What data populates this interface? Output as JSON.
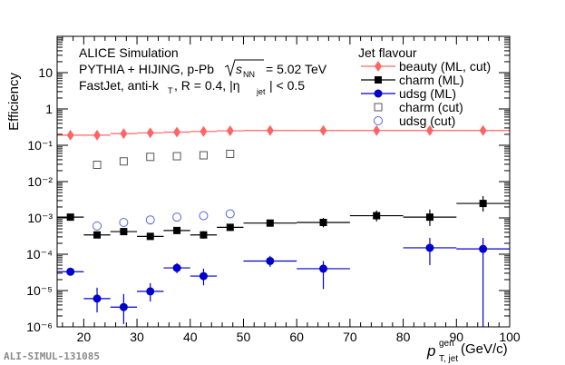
{
  "chart_data": {
    "type": "scatter",
    "title": "",
    "xlabel_main": "p",
    "xlabel_sup": "gen",
    "xlabel_sub": "T, jet",
    "xlabel_unit": "(GeV/c)",
    "ylabel": "Efficiency",
    "xlim": [
      15,
      100
    ],
    "ylim_log10": [
      -6,
      2
    ],
    "x_ticks": [
      20,
      30,
      40,
      50,
      60,
      70,
      80,
      90,
      100
    ],
    "y_tick_exponents": [
      -6,
      -5,
      -4,
      -3,
      -2,
      -1,
      0,
      1
    ],
    "y_tick_labels": [
      "10⁻⁶",
      "10⁻⁵",
      "10⁻⁴",
      "10⁻³",
      "10⁻²",
      "10⁻¹",
      "1",
      "10"
    ],
    "annotations": {
      "line1": "ALICE Simulation",
      "line2_prefix": "PYTHIA + HIJING, p-Pb",
      "line2_sqrt_sub": "NN",
      "line2_suffix": "= 5.02 TeV",
      "line3_prefix": "FastJet, anti-k",
      "line3_k_sub": "T",
      "line3_mid": ", R = 0.4, |η",
      "line3_eta_sub": "jet",
      "line3_suffix": "| < 0.5"
    },
    "legend": {
      "title": "Jet flavour",
      "position": "top-right",
      "entries": [
        "beauty (ML, cut)",
        "charm (ML)",
        "udsg (ML)",
        "charm (cut)",
        "udsg (cut)"
      ]
    },
    "footer_label": "ALI-SIMUL-131085",
    "series": [
      {
        "name": "beauty (ML, cut)",
        "marker": "diamond",
        "color": "#ff6464",
        "points": [
          {
            "x": 17.5,
            "x_lo": 15,
            "x_hi": 20,
            "y": 0.19,
            "y_lo": 0.175,
            "y_hi": 0.205
          },
          {
            "x": 22.5,
            "x_lo": 20,
            "x_hi": 25,
            "y": 0.19,
            "y_lo": 0.175,
            "y_hi": 0.205
          },
          {
            "x": 27.5,
            "x_lo": 25,
            "x_hi": 30,
            "y": 0.21,
            "y_lo": 0.195,
            "y_hi": 0.225
          },
          {
            "x": 32.5,
            "x_lo": 30,
            "x_hi": 35,
            "y": 0.22,
            "y_lo": 0.205,
            "y_hi": 0.235
          },
          {
            "x": 37.5,
            "x_lo": 35,
            "x_hi": 40,
            "y": 0.23,
            "y_lo": 0.215,
            "y_hi": 0.245
          },
          {
            "x": 42.5,
            "x_lo": 40,
            "x_hi": 45,
            "y": 0.24,
            "y_lo": 0.225,
            "y_hi": 0.255
          },
          {
            "x": 47.5,
            "x_lo": 45,
            "x_hi": 50,
            "y": 0.25,
            "y_lo": 0.235,
            "y_hi": 0.265
          },
          {
            "x": 55,
            "x_lo": 50,
            "x_hi": 60,
            "y": 0.255,
            "y_lo": 0.24,
            "y_hi": 0.27
          },
          {
            "x": 65,
            "x_lo": 60,
            "x_hi": 70,
            "y": 0.255,
            "y_lo": 0.24,
            "y_hi": 0.27
          },
          {
            "x": 75,
            "x_lo": 70,
            "x_hi": 80,
            "y": 0.255,
            "y_lo": 0.24,
            "y_hi": 0.27
          },
          {
            "x": 85,
            "x_lo": 80,
            "x_hi": 90,
            "y": 0.255,
            "y_lo": 0.24,
            "y_hi": 0.27
          },
          {
            "x": 95,
            "x_lo": 90,
            "x_hi": 100,
            "y": 0.255,
            "y_lo": 0.24,
            "y_hi": 0.27
          }
        ]
      },
      {
        "name": "charm (ML)",
        "marker": "square",
        "color": "#000000",
        "points": [
          {
            "x": 17.5,
            "x_lo": 15,
            "x_hi": 20,
            "y": 0.00105,
            "y_lo": 0.00095,
            "y_hi": 0.00115
          },
          {
            "x": 22.5,
            "x_lo": 20,
            "x_hi": 25,
            "y": 0.00034,
            "y_lo": 0.00029,
            "y_hi": 0.00039
          },
          {
            "x": 27.5,
            "x_lo": 25,
            "x_hi": 30,
            "y": 0.00042,
            "y_lo": 0.00036,
            "y_hi": 0.00048
          },
          {
            "x": 32.5,
            "x_lo": 30,
            "x_hi": 35,
            "y": 0.00031,
            "y_lo": 0.00026,
            "y_hi": 0.00036
          },
          {
            "x": 37.5,
            "x_lo": 35,
            "x_hi": 40,
            "y": 0.00045,
            "y_lo": 0.00038,
            "y_hi": 0.00053
          },
          {
            "x": 42.5,
            "x_lo": 40,
            "x_hi": 45,
            "y": 0.00034,
            "y_lo": 0.00027,
            "y_hi": 0.00043
          },
          {
            "x": 47.5,
            "x_lo": 45,
            "x_hi": 50,
            "y": 0.00055,
            "y_lo": 0.00045,
            "y_hi": 0.00068
          },
          {
            "x": 55,
            "x_lo": 50,
            "x_hi": 60,
            "y": 0.00072,
            "y_lo": 0.0006,
            "y_hi": 0.00086
          },
          {
            "x": 65,
            "x_lo": 60,
            "x_hi": 70,
            "y": 0.00075,
            "y_lo": 0.00055,
            "y_hi": 0.001
          },
          {
            "x": 75,
            "x_lo": 70,
            "x_hi": 80,
            "y": 0.00115,
            "y_lo": 0.0008,
            "y_hi": 0.0016
          },
          {
            "x": 85,
            "x_lo": 80,
            "x_hi": 90,
            "y": 0.00105,
            "y_lo": 0.0006,
            "y_hi": 0.0017
          },
          {
            "x": 95,
            "x_lo": 90,
            "x_hi": 100,
            "y": 0.0025,
            "y_lo": 0.0015,
            "y_hi": 0.004
          }
        ]
      },
      {
        "name": "udsg (ML)",
        "marker": "circle",
        "color": "#0000cc",
        "points": [
          {
            "x": 17.5,
            "x_lo": 15,
            "x_hi": 20,
            "y": 3.3e-05,
            "y_lo": 2.9e-05,
            "y_hi": 3.7e-05
          },
          {
            "x": 22.5,
            "x_lo": 20,
            "x_hi": 25,
            "y": 6e-06,
            "y_lo": 2.5e-06,
            "y_hi": 1.2e-05
          },
          {
            "x": 27.5,
            "x_lo": 25,
            "x_hi": 30,
            "y": 3.5e-06,
            "y_lo": 1.2e-06,
            "y_hi": 8e-06
          },
          {
            "x": 32.5,
            "x_lo": 30,
            "x_hi": 35,
            "y": 9.5e-06,
            "y_lo": 5e-06,
            "y_hi": 1.6e-05
          },
          {
            "x": 37.5,
            "x_lo": 35,
            "x_hi": 40,
            "y": 4.2e-05,
            "y_lo": 3e-05,
            "y_hi": 5.7e-05
          },
          {
            "x": 42.5,
            "x_lo": 40,
            "x_hi": 45,
            "y": 2.5e-05,
            "y_lo": 1.4e-05,
            "y_hi": 4e-05
          },
          {
            "x": 55,
            "x_lo": 50,
            "x_hi": 60,
            "y": 6.5e-05,
            "y_lo": 4.5e-05,
            "y_hi": 9e-05
          },
          {
            "x": 65,
            "x_lo": 60,
            "x_hi": 70,
            "y": 4e-05,
            "y_lo": 1.1e-05,
            "y_hi": 6.5e-05
          },
          {
            "x": 85,
            "x_lo": 80,
            "x_hi": 90,
            "y": 0.00015,
            "y_lo": 5e-05,
            "y_hi": 0.00028
          },
          {
            "x": 95,
            "x_lo": 90,
            "x_hi": 100,
            "y": 0.00014,
            "y_lo": 1e-06,
            "y_hi": 0.00028
          }
        ]
      },
      {
        "name": "charm (cut)",
        "marker": "open-square",
        "color": "#555555",
        "points": [
          {
            "x": 22.5,
            "y": 0.029
          },
          {
            "x": 27.5,
            "y": 0.036
          },
          {
            "x": 32.5,
            "y": 0.048
          },
          {
            "x": 37.5,
            "y": 0.05
          },
          {
            "x": 42.5,
            "y": 0.053
          },
          {
            "x": 47.5,
            "y": 0.058
          }
        ]
      },
      {
        "name": "udsg (cut)",
        "marker": "open-circle",
        "color": "#5566dd",
        "points": [
          {
            "x": 22.5,
            "y": 0.0006
          },
          {
            "x": 27.5,
            "y": 0.00075
          },
          {
            "x": 32.5,
            "y": 0.00088
          },
          {
            "x": 37.5,
            "y": 0.00105
          },
          {
            "x": 42.5,
            "y": 0.00115
          },
          {
            "x": 47.5,
            "y": 0.0013
          }
        ]
      }
    ]
  }
}
